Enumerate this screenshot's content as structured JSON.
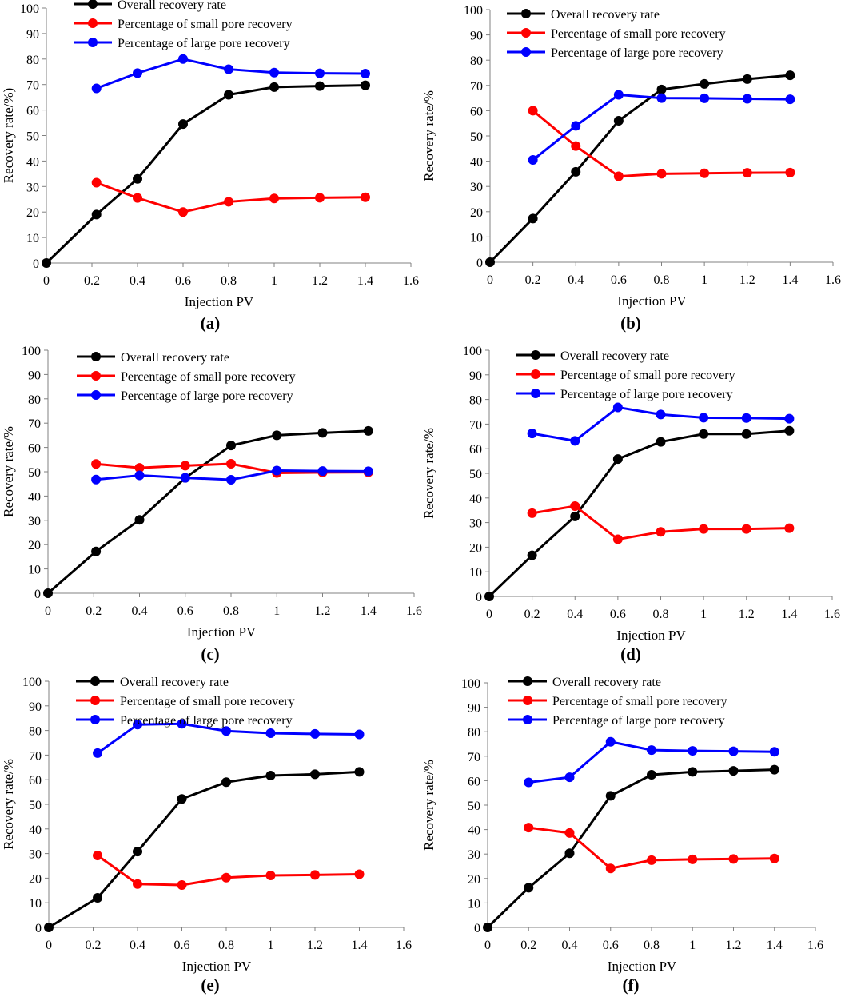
{
  "colors": {
    "overall": "#000000",
    "small": "#ff0000",
    "large": "#0000ff",
    "axis": "#808080"
  },
  "legend": {
    "overall": "Overall recovery rate",
    "small": "Percentage of small pore recovery",
    "large": "Percentage of large pore recovery"
  },
  "chart_data": [
    {
      "panel": "(a)",
      "type": "line",
      "xlabel": "Injection PV",
      "ylabel": "Recovery rate/%​)",
      "xlim": [
        0,
        1.6
      ],
      "ylim": [
        0,
        100
      ],
      "xticks": [
        "0",
        "0.2",
        "0.4",
        "0.6",
        "0.8",
        "1",
        "1.2",
        "1.4",
        "1.6"
      ],
      "yticks": [
        "0",
        "10",
        "20",
        "30",
        "40",
        "50",
        "60",
        "70",
        "80",
        "90",
        "100"
      ],
      "series": [
        {
          "key": "overall",
          "name": "Overall recovery rate",
          "x": [
            0,
            0.22,
            0.4,
            0.6,
            0.8,
            1.0,
            1.2,
            1.4
          ],
          "values": [
            0,
            19,
            33,
            54.5,
            66,
            69,
            69.4,
            69.7
          ]
        },
        {
          "key": "small",
          "name": "Percentage of small pore recovery",
          "x": [
            0.22,
            0.4,
            0.6,
            0.8,
            1.0,
            1.2,
            1.4
          ],
          "values": [
            31.5,
            25.5,
            20,
            24,
            25.3,
            25.6,
            25.8
          ]
        },
        {
          "key": "large",
          "name": "Percentage of large pore recovery",
          "x": [
            0.22,
            0.4,
            0.6,
            0.8,
            1.0,
            1.2,
            1.4
          ],
          "values": [
            68.5,
            74.5,
            80,
            76,
            74.7,
            74.4,
            74.3
          ]
        }
      ]
    },
    {
      "panel": "(b)",
      "type": "line",
      "xlabel": "Injection PV",
      "ylabel": "Recovery rate/%",
      "xlim": [
        0,
        1.6
      ],
      "ylim": [
        0,
        100
      ],
      "xticks": [
        "0",
        "0.2",
        "0.4",
        "0.6",
        "0.8",
        "1",
        "1.2",
        "1.4",
        "1.6"
      ],
      "yticks": [
        "0",
        "10",
        "20",
        "30",
        "40",
        "50",
        "60",
        "70",
        "80",
        "90",
        "100"
      ],
      "series": [
        {
          "key": "overall",
          "name": "Overall recovery rate",
          "x": [
            0,
            0.2,
            0.4,
            0.6,
            0.8,
            1.0,
            1.2,
            1.4
          ],
          "values": [
            0,
            17.3,
            35.8,
            56,
            68.4,
            70.6,
            72.5,
            74
          ]
        },
        {
          "key": "small",
          "name": "Percentage of small pore recovery",
          "x": [
            0.2,
            0.4,
            0.6,
            0.8,
            1.0,
            1.2,
            1.4
          ],
          "values": [
            60,
            46,
            34,
            35,
            35.2,
            35.4,
            35.5
          ]
        },
        {
          "key": "large",
          "name": "Percentage of large pore recovery",
          "x": [
            0.2,
            0.4,
            0.6,
            0.8,
            1.0,
            1.2,
            1.4
          ],
          "values": [
            40.5,
            54,
            66.3,
            65,
            64.9,
            64.7,
            64.5
          ]
        }
      ]
    },
    {
      "panel": "(c)",
      "type": "line",
      "xlabel": "Injection PV",
      "ylabel": "Recovery rate/%",
      "xlim": [
        0,
        1.6
      ],
      "ylim": [
        0,
        100
      ],
      "xticks": [
        "0",
        "0.2",
        "0.4",
        "0.6",
        "0.8",
        "1",
        "1.2",
        "1.4",
        "1.6"
      ],
      "yticks": [
        "0",
        "10",
        "20",
        "30",
        "40",
        "50",
        "60",
        "70",
        "80",
        "90",
        "100"
      ],
      "series": [
        {
          "key": "overall",
          "name": "Overall recovery rate",
          "x": [
            0,
            0.21,
            0.4,
            0.6,
            0.8,
            1.0,
            1.2,
            1.4
          ],
          "values": [
            0,
            17.2,
            30.2,
            47.5,
            60.8,
            65,
            66,
            66.8
          ]
        },
        {
          "key": "small",
          "name": "Percentage of small pore recovery",
          "x": [
            0.21,
            0.4,
            0.6,
            0.8,
            1.0,
            1.2,
            1.4
          ],
          "values": [
            53.2,
            51.6,
            52.5,
            53.3,
            49.5,
            49.7,
            49.8
          ]
        },
        {
          "key": "large",
          "name": "Percentage of large pore recovery",
          "x": [
            0.21,
            0.4,
            0.6,
            0.8,
            1.0,
            1.2,
            1.4
          ],
          "values": [
            46.8,
            48.5,
            47.5,
            46.7,
            50.5,
            50.3,
            50.2
          ]
        }
      ]
    },
    {
      "panel": "(d)",
      "type": "line",
      "xlabel": "Injection PV",
      "ylabel": "Recovery rate/%",
      "xlim": [
        0,
        1.6
      ],
      "ylim": [
        0,
        100
      ],
      "xticks": [
        "0",
        "0.2",
        "0.4",
        "0.6",
        "0.8",
        "1",
        "1.2",
        "1.4",
        "1.6"
      ],
      "yticks": [
        "0",
        "10",
        "20",
        "30",
        "40",
        "50",
        "60",
        "70",
        "80",
        "90",
        "100"
      ],
      "series": [
        {
          "key": "overall",
          "name": "Overall recovery rate",
          "x": [
            0,
            0.2,
            0.4,
            0.6,
            0.8,
            1.0,
            1.2,
            1.4
          ],
          "values": [
            0,
            16.7,
            32.5,
            55.8,
            62.8,
            66,
            66,
            67.3
          ]
        },
        {
          "key": "small",
          "name": "Percentage of small pore recovery",
          "x": [
            0.2,
            0.4,
            0.6,
            0.8,
            1.0,
            1.2,
            1.4
          ],
          "values": [
            33.8,
            36.7,
            23.2,
            26.2,
            27.4,
            27.4,
            27.7
          ]
        },
        {
          "key": "large",
          "name": "Percentage of large pore recovery",
          "x": [
            0.2,
            0.4,
            0.6,
            0.8,
            1.0,
            1.2,
            1.4
          ],
          "values": [
            66.2,
            63.2,
            76.8,
            73.9,
            72.6,
            72.5,
            72.2
          ]
        }
      ]
    },
    {
      "panel": "(e)",
      "type": "line",
      "xlabel": "Injection PV",
      "ylabel": "Recovery rate/%",
      "xlim": [
        0,
        1.6
      ],
      "ylim": [
        0,
        100
      ],
      "xticks": [
        "0",
        "0.2",
        "0.4",
        "0.6",
        "0.8",
        "1",
        "1.2",
        "1.4",
        "1.6"
      ],
      "yticks": [
        "0",
        "10",
        "20",
        "30",
        "40",
        "50",
        "60",
        "70",
        "80",
        "90",
        "100"
      ],
      "series": [
        {
          "key": "overall",
          "name": "Overall recovery rate",
          "x": [
            0,
            0.22,
            0.4,
            0.6,
            0.8,
            1.0,
            1.2,
            1.4
          ],
          "values": [
            0,
            12,
            30.8,
            52.2,
            59,
            61.7,
            62.2,
            63.2
          ]
        },
        {
          "key": "small",
          "name": "Percentage of small pore recovery",
          "x": [
            0.22,
            0.4,
            0.6,
            0.8,
            1.0,
            1.2,
            1.4
          ],
          "values": [
            29.2,
            17.6,
            17.2,
            20.2,
            21.1,
            21.3,
            21.6
          ]
        },
        {
          "key": "large",
          "name": "Percentage of large pore recovery",
          "x": [
            0.22,
            0.4,
            0.6,
            0.8,
            1.0,
            1.2,
            1.4
          ],
          "values": [
            70.8,
            82.4,
            82.7,
            79.8,
            78.9,
            78.6,
            78.4
          ]
        }
      ]
    },
    {
      "panel": "(f)",
      "type": "line",
      "xlabel": "Injection PV",
      "ylabel": "Recovery rate/%",
      "xlim": [
        0,
        1.6
      ],
      "ylim": [
        0,
        100
      ],
      "xticks": [
        "0",
        "0.2",
        "0.4",
        "0.6",
        "0.8",
        "1",
        "1.2",
        "1.4",
        "1.6"
      ],
      "yticks": [
        "0",
        "10",
        "20",
        "30",
        "40",
        "50",
        "60",
        "70",
        "80",
        "90",
        "100"
      ],
      "series": [
        {
          "key": "overall",
          "name": "Overall recovery rate",
          "x": [
            0,
            0.2,
            0.4,
            0.6,
            0.8,
            1.0,
            1.2,
            1.4
          ],
          "values": [
            0,
            16.2,
            30.3,
            53.8,
            62.4,
            63.6,
            64,
            64.5
          ]
        },
        {
          "key": "small",
          "name": "Percentage of small pore recovery",
          "x": [
            0.2,
            0.4,
            0.6,
            0.8,
            1.0,
            1.2,
            1.4
          ],
          "values": [
            40.8,
            38.6,
            24.1,
            27.5,
            27.8,
            28,
            28.2
          ]
        },
        {
          "key": "large",
          "name": "Percentage of large pore recovery",
          "x": [
            0.2,
            0.4,
            0.6,
            0.8,
            1.0,
            1.2,
            1.4
          ],
          "values": [
            59.3,
            61.4,
            75.9,
            72.5,
            72.2,
            72,
            71.8
          ]
        }
      ]
    }
  ]
}
